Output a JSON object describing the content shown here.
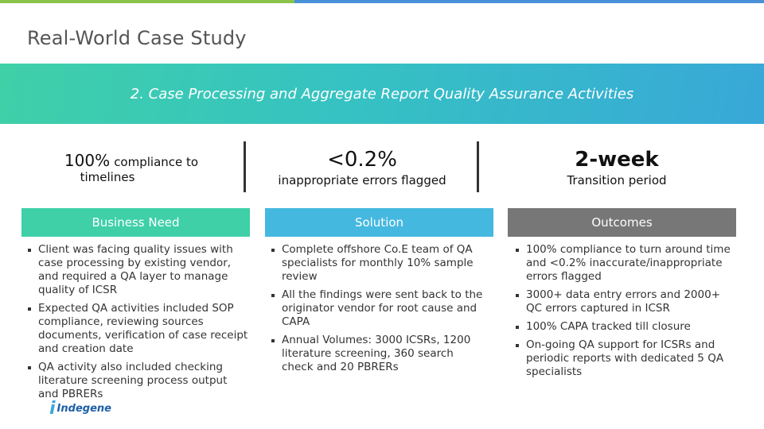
{
  "title": "Real-World Case Study",
  "banner": "2. Case Processing and Aggregate Report Quality Assurance Activities",
  "stats": [
    {
      "big": "100%",
      "inline": "compliance to",
      "sub": "timelines"
    },
    {
      "big": "<0.2%",
      "sub": "inappropriate errors flagged"
    },
    {
      "big": "2-week",
      "sub": "Transition period"
    }
  ],
  "columns": [
    {
      "header": "Business Need",
      "items": [
        "Client was facing quality issues with case processing by existing vendor, and required a QA layer to manage quality of ICSR",
        "Expected QA activities included SOP compliance, reviewing sources documents, verification of case receipt and creation date",
        "QA activity also included checking literature screening process output and PBRERs"
      ]
    },
    {
      "header": "Solution",
      "items": [
        "Complete offshore Co.E team of QA specialists for monthly 10% sample review",
        "All the findings were sent back to the originator vendor for root cause and CAPA",
        "Annual Volumes:  3000 ICSRs, 1200 literature screening, 360 search check and 20 PBRERs"
      ]
    },
    {
      "header": "Outcomes",
      "items": [
        "100% compliance to turn around time and <0.2% inaccurate/inappropriate errors flagged",
        "3000+ data entry errors and 2000+ QC errors captured in ICSR",
        "100% CAPA tracked till closure",
        "On-going QA support for ICSRs and periodic reports with dedicated  5 QA specialists"
      ]
    }
  ],
  "logo": {
    "mark": "i",
    "text": "Indegene"
  },
  "colors": {
    "header1": "#3fd0a8",
    "header2": "#45b8e0",
    "header3": "#777777"
  }
}
